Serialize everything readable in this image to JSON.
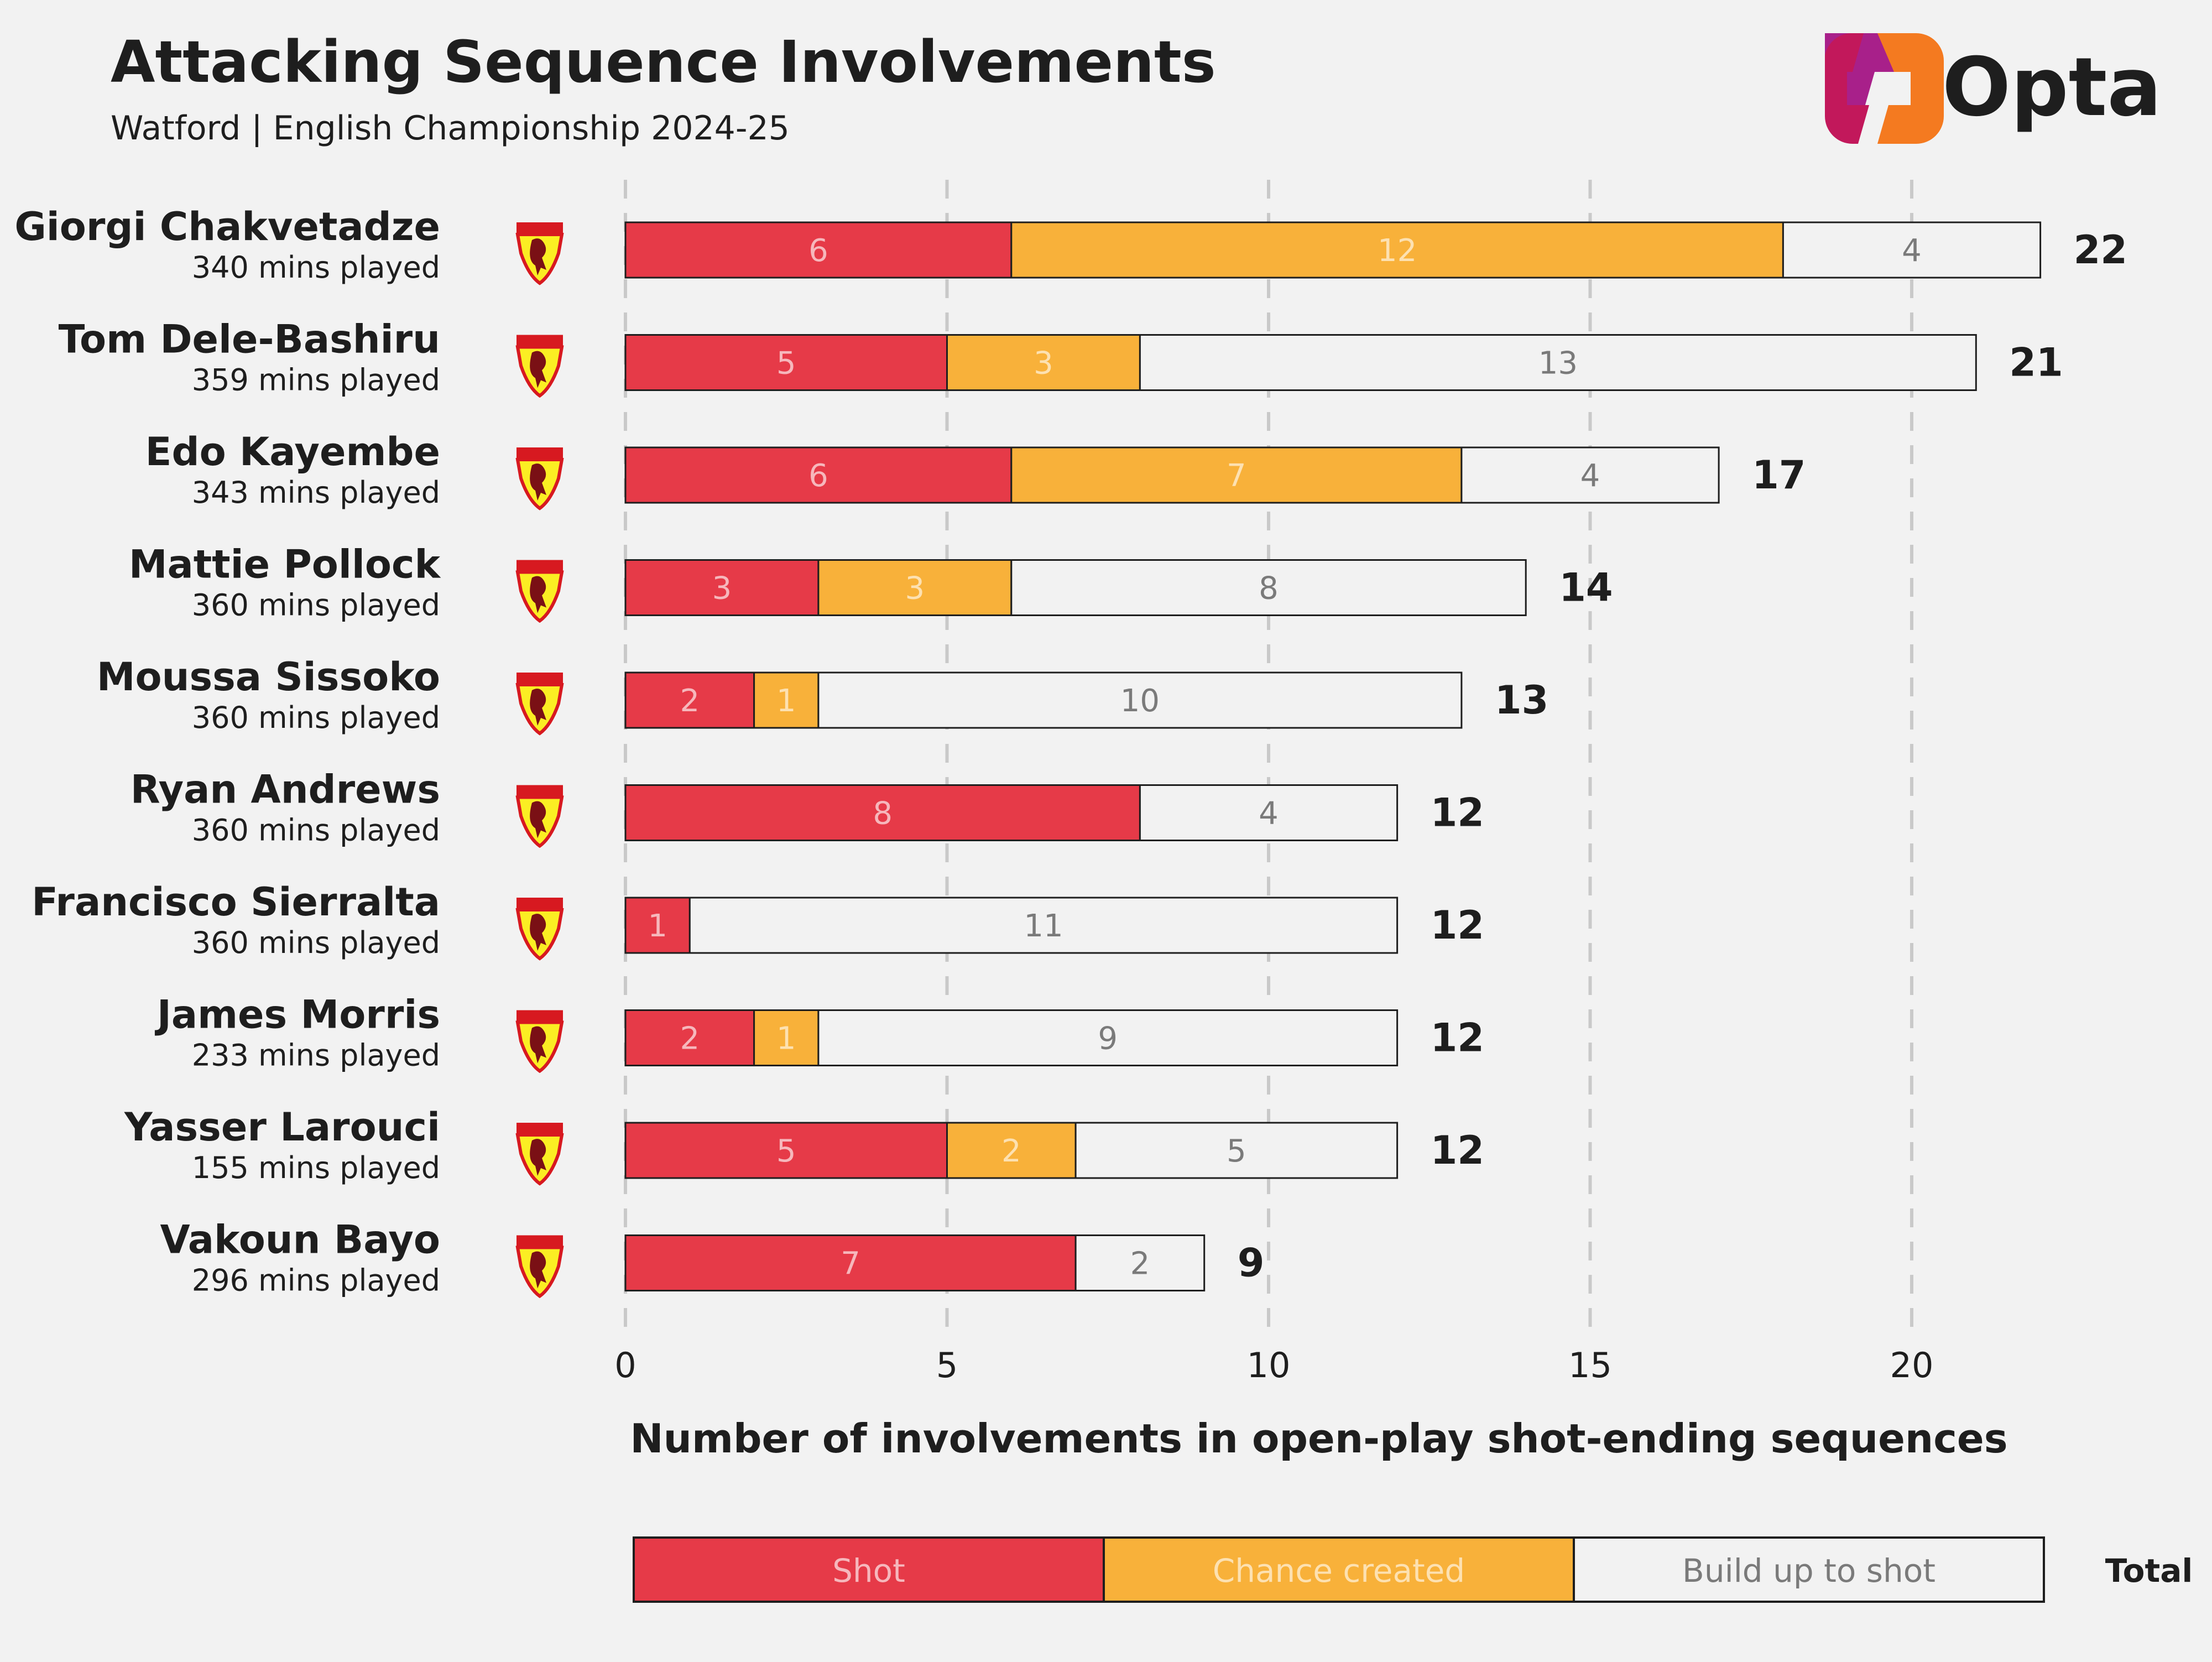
{
  "header": {
    "title": "Attacking Sequence Involvements",
    "subtitle": "Watford | English Championship 2024-25"
  },
  "brand": {
    "name": "Opta",
    "icon": "opta-logo-icon"
  },
  "club_badge_icon": "watford-badge-icon",
  "colors": {
    "shot": "#e63a48",
    "chance_created": "#f8b13a",
    "build_up": "#f2f2f2",
    "background": "#f2f2f2",
    "text": "#1e1e1e",
    "grid": "#c9c9c9"
  },
  "chart_data": {
    "type": "bar",
    "orientation": "horizontal",
    "stacked": true,
    "title": "Attacking Sequence Involvements",
    "subtitle": "Watford | English Championship 2024-25",
    "xlabel": "Number of involvements in open-play shot-ending sequences",
    "ylabel": "",
    "xlim": [
      0,
      22
    ],
    "xticks": [
      0,
      5,
      10,
      15,
      20
    ],
    "grid": "vertical dashed",
    "categories": [
      "Giorgi Chakvetadze",
      "Tom Dele-Bashiru",
      "Edo Kayembe",
      "Mattie Pollock",
      "Moussa Sissoko",
      "Ryan Andrews",
      "Francisco Sierralta",
      "James Morris",
      "Yasser Larouci",
      "Vakoun Bayo"
    ],
    "minutes": [
      "340 mins played",
      "359 mins played",
      "343 mins played",
      "360 mins played",
      "360 mins played",
      "360 mins played",
      "360 mins played",
      "233 mins played",
      "155 mins played",
      "296 mins played"
    ],
    "series": [
      {
        "name": "Shot",
        "values": [
          6,
          5,
          6,
          3,
          2,
          8,
          1,
          2,
          5,
          7
        ]
      },
      {
        "name": "Chance created",
        "values": [
          12,
          3,
          7,
          3,
          1,
          0,
          0,
          1,
          2,
          0
        ]
      },
      {
        "name": "Build up to shot",
        "values": [
          4,
          13,
          4,
          8,
          10,
          4,
          11,
          9,
          5,
          2
        ]
      }
    ],
    "totals": [
      22,
      21,
      17,
      14,
      13,
      12,
      12,
      12,
      12,
      9
    ],
    "legend": {
      "position": "bottom",
      "items": [
        "Shot",
        "Chance created",
        "Build up to shot"
      ],
      "total_label": "Total"
    }
  }
}
